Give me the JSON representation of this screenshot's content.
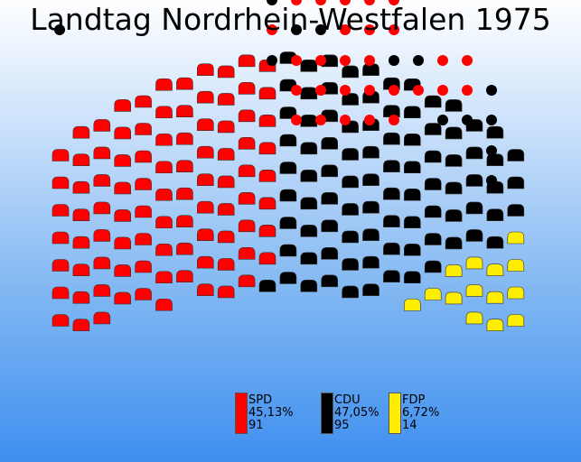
{
  "title": "Landtag Nordrhein-Westfalen 1975",
  "parties": [
    {
      "name": "SPD",
      "percent": "45,13%",
      "seats": "91",
      "color": "#ff0000"
    },
    {
      "name": "CDU",
      "percent": "47,05%",
      "seats": "95",
      "color": "#000000"
    },
    {
      "name": "FDP",
      "percent": "6,72%",
      "seats": "14",
      "color": "#ffee00"
    }
  ]
}
